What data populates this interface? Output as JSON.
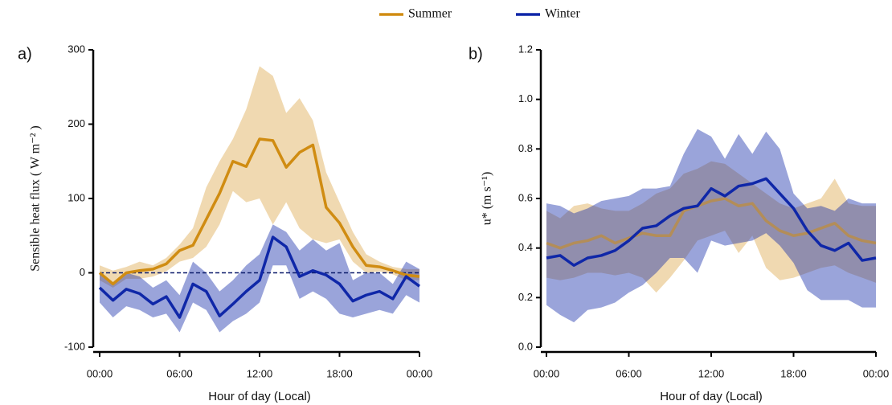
{
  "chart_data": [
    {
      "type": "line",
      "panel_label": "a)",
      "xlabel": "Hour of  day (Local)",
      "ylabel": "Sensible heat flux ( W m⁻² )",
      "x": [
        0,
        1,
        2,
        3,
        4,
        5,
        6,
        7,
        8,
        9,
        10,
        11,
        12,
        13,
        14,
        15,
        16,
        17,
        18,
        19,
        20,
        21,
        22,
        23,
        24
      ],
      "xlim": [
        0,
        24
      ],
      "xticks": [
        {
          "value": 0,
          "label": "00:00"
        },
        {
          "value": 6,
          "label": "06:00"
        },
        {
          "value": 12,
          "label": "12:00"
        },
        {
          "value": 18,
          "label": "18:00"
        },
        {
          "value": 24,
          "label": "00:00"
        }
      ],
      "ylim": [
        -100,
        300
      ],
      "yticks": [
        -100,
        0,
        100,
        200,
        300
      ],
      "reference_line": 0,
      "series": [
        {
          "name": "Summer",
          "color": "#d08c12",
          "values": [
            0,
            -15,
            0,
            3,
            5,
            12,
            30,
            37,
            72,
            107,
            150,
            143,
            180,
            178,
            142,
            162,
            172,
            88,
            67,
            35,
            10,
            8,
            3,
            -3,
            -5
          ],
          "upper": [
            10,
            3,
            8,
            15,
            10,
            20,
            38,
            60,
            115,
            150,
            180,
            220,
            278,
            265,
            215,
            235,
            205,
            135,
            95,
            55,
            25,
            15,
            8,
            5,
            5
          ],
          "lower": [
            -10,
            -20,
            -8,
            -8,
            -5,
            2,
            15,
            20,
            35,
            65,
            110,
            95,
            100,
            65,
            95,
            60,
            45,
            40,
            45,
            15,
            0,
            2,
            -2,
            -10,
            -10
          ]
        },
        {
          "name": "Winter",
          "color": "#0f27a8",
          "values": [
            -20,
            -37,
            -22,
            -28,
            -42,
            -32,
            -60,
            -15,
            -25,
            -58,
            -42,
            -25,
            -10,
            48,
            35,
            -5,
            3,
            -3,
            -15,
            -38,
            -30,
            -25,
            -35,
            -5,
            -18
          ],
          "upper": [
            0,
            -15,
            0,
            -5,
            -20,
            -10,
            -30,
            15,
            0,
            -25,
            -10,
            10,
            25,
            65,
            55,
            30,
            45,
            30,
            40,
            -10,
            0,
            0,
            -15,
            15,
            5
          ],
          "lower": [
            -40,
            -60,
            -45,
            -50,
            -60,
            -55,
            -80,
            -40,
            -50,
            -80,
            -65,
            -55,
            -40,
            10,
            10,
            -35,
            -25,
            -35,
            -55,
            -60,
            -55,
            -50,
            -55,
            -30,
            -40
          ]
        }
      ]
    },
    {
      "type": "line",
      "panel_label": "b)",
      "xlabel": "Hour of  day (Local)",
      "ylabel": "u* (m s⁻¹)",
      "x": [
        0,
        1,
        2,
        3,
        4,
        5,
        6,
        7,
        8,
        9,
        10,
        11,
        12,
        13,
        14,
        15,
        16,
        17,
        18,
        19,
        20,
        21,
        22,
        23,
        24
      ],
      "xlim": [
        0,
        24
      ],
      "xticks": [
        {
          "value": 0,
          "label": "00:00"
        },
        {
          "value": 6,
          "label": "06:00"
        },
        {
          "value": 12,
          "label": "12:00"
        },
        {
          "value": 18,
          "label": "18:00"
        },
        {
          "value": 24,
          "label": "00:00"
        }
      ],
      "ylim": [
        0,
        1.2
      ],
      "yticks": [
        {
          "value": 0,
          "label": "0.0"
        },
        0.2,
        0.4,
        0.6,
        0.8,
        {
          "value": 1,
          "label": "1.0"
        },
        1.2
      ],
      "series": [
        {
          "color": "#d08c12",
          "values": [
            0.42,
            0.4,
            0.42,
            0.43,
            0.45,
            0.42,
            0.44,
            0.46,
            0.45,
            0.45,
            0.55,
            0.57,
            0.59,
            0.6,
            0.57,
            0.58,
            0.51,
            0.47,
            0.45,
            0.46,
            0.48,
            0.5,
            0.45,
            0.43,
            0.42
          ],
          "upper": [
            0.55,
            0.52,
            0.57,
            0.58,
            0.56,
            0.55,
            0.55,
            0.58,
            0.62,
            0.64,
            0.7,
            0.72,
            0.75,
            0.74,
            0.7,
            0.66,
            0.62,
            0.58,
            0.56,
            0.58,
            0.6,
            0.68,
            0.58,
            0.57,
            0.57
          ],
          "lower": [
            0.28,
            0.27,
            0.28,
            0.3,
            0.3,
            0.29,
            0.3,
            0.28,
            0.22,
            0.28,
            0.35,
            0.43,
            0.45,
            0.47,
            0.38,
            0.45,
            0.32,
            0.27,
            0.28,
            0.3,
            0.32,
            0.33,
            0.3,
            0.28,
            0.26
          ]
        },
        {
          "color": "#0f27a8",
          "values": [
            0.36,
            0.37,
            0.33,
            0.36,
            0.37,
            0.39,
            0.43,
            0.48,
            0.49,
            0.53,
            0.56,
            0.57,
            0.64,
            0.61,
            0.65,
            0.66,
            0.68,
            0.62,
            0.56,
            0.47,
            0.41,
            0.39,
            0.42,
            0.35,
            0.36
          ],
          "upper": [
            0.58,
            0.57,
            0.54,
            0.56,
            0.59,
            0.6,
            0.61,
            0.64,
            0.64,
            0.65,
            0.78,
            0.88,
            0.85,
            0.76,
            0.86,
            0.78,
            0.87,
            0.8,
            0.62,
            0.56,
            0.57,
            0.55,
            0.6,
            0.58,
            0.58
          ],
          "lower": [
            0.17,
            0.13,
            0.1,
            0.15,
            0.16,
            0.18,
            0.22,
            0.25,
            0.3,
            0.36,
            0.36,
            0.3,
            0.43,
            0.41,
            0.42,
            0.43,
            0.46,
            0.41,
            0.34,
            0.23,
            0.19,
            0.19,
            0.19,
            0.16,
            0.16
          ]
        }
      ]
    }
  ]
}
